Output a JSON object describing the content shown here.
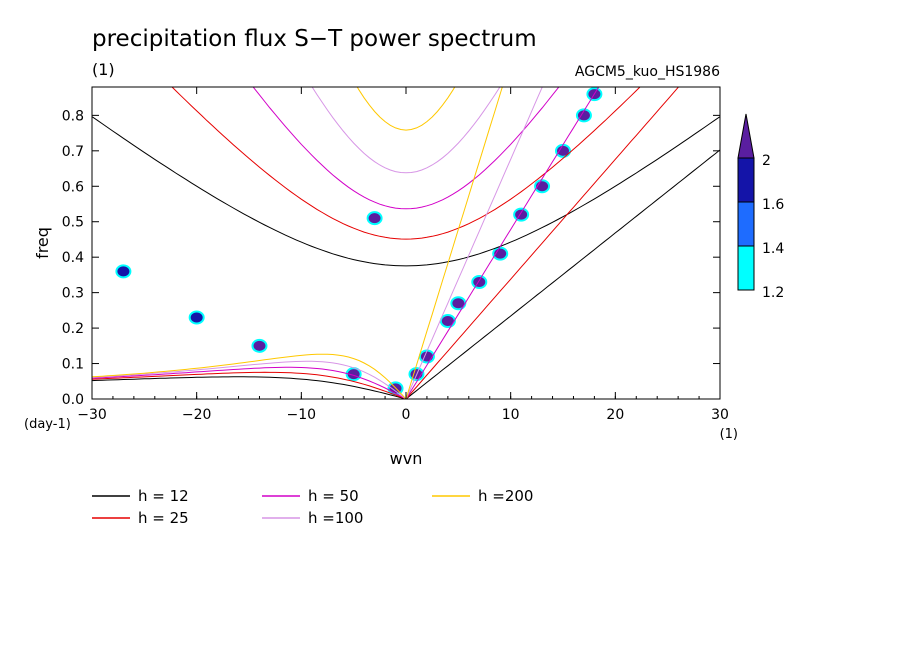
{
  "chart_data": {
    "type": "heatmap",
    "title": "precipitation flux S−T power spectrum",
    "subtitle_left": "(1)",
    "subtitle_right": "AGCM5_kuo_HS1986",
    "xlabel": "wvn",
    "ylabel": "freq",
    "x_unit": "(1)",
    "y_unit": "(day-1)",
    "xlim": [
      -30,
      30
    ],
    "ylim": [
      0,
      0.88
    ],
    "xticks": [
      -30,
      -20,
      -10,
      0,
      10,
      20,
      30
    ],
    "yticks": [
      0.0,
      0.1,
      0.2,
      0.3,
      0.4,
      0.5,
      0.6,
      0.7,
      0.8
    ],
    "colorbar": {
      "levels": [
        1.2,
        1.4,
        1.6,
        2
      ],
      "labels": [
        "1.2",
        "1.4",
        "1.6",
        "2"
      ],
      "colors": [
        "#00ffff",
        "#1e6cff",
        "#1414a8",
        "#5a1ea0"
      ]
    },
    "dispersion_curves": [
      {
        "label": "h = 12",
        "h": 12,
        "color": "#000000"
      },
      {
        "label": "h = 25",
        "h": 25,
        "color": "#e60000"
      },
      {
        "label": "h = 50",
        "h": 50,
        "color": "#d200c8"
      },
      {
        "label": "h =100",
        "h": 100,
        "color": "#d796e6"
      },
      {
        "label": "h =200",
        "h": 200,
        "color": "#ffc800"
      }
    ],
    "spectral_peaks": [
      {
        "wvn": 1,
        "freq": 0.07,
        "level": 2
      },
      {
        "wvn": 2,
        "freq": 0.12,
        "level": 2
      },
      {
        "wvn": 4,
        "freq": 0.22,
        "level": 1.6
      },
      {
        "wvn": 5,
        "freq": 0.27,
        "level": 2
      },
      {
        "wvn": 7,
        "freq": 0.33,
        "level": 2
      },
      {
        "wvn": 9,
        "freq": 0.41,
        "level": 2
      },
      {
        "wvn": 11,
        "freq": 0.52,
        "level": 2
      },
      {
        "wvn": 13,
        "freq": 0.6,
        "level": 2
      },
      {
        "wvn": 15,
        "freq": 0.7,
        "level": 1.6
      },
      {
        "wvn": 17,
        "freq": 0.8,
        "level": 2
      },
      {
        "wvn": 18,
        "freq": 0.86,
        "level": 2
      },
      {
        "wvn": -3,
        "freq": 0.51,
        "level": 2
      },
      {
        "wvn": -1,
        "freq": 0.03,
        "level": 2
      },
      {
        "wvn": -5,
        "freq": 0.07,
        "level": 1.6
      },
      {
        "wvn": -14,
        "freq": 0.15,
        "level": 1.6
      },
      {
        "wvn": -20,
        "freq": 0.23,
        "level": 1.4
      },
      {
        "wvn": -27,
        "freq": 0.36,
        "level": 1.4
      }
    ]
  }
}
